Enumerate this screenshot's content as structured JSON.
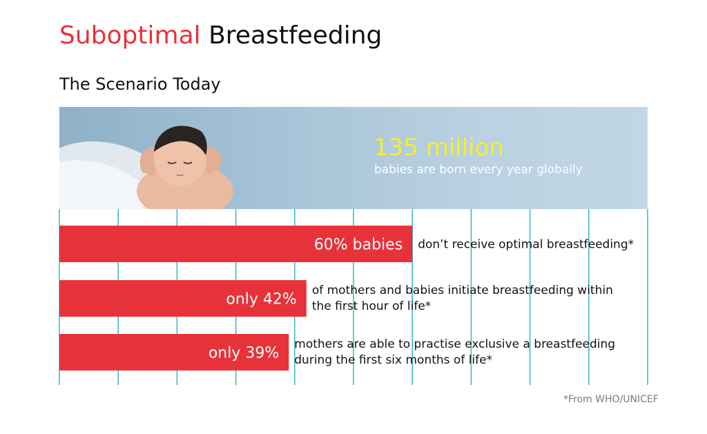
{
  "header": {
    "title_accent": "Suboptimal",
    "title_rest": "Breastfeeding",
    "subtitle": "The Scenario Today"
  },
  "hero": {
    "headline": "135 million",
    "subline": "babies are born every year globally"
  },
  "source_note": "*From WHO/UNICEF",
  "colors": {
    "accent": "#e8323a",
    "bar": "#e8323a",
    "grid": "#35b7c0",
    "headline": "#f6ef2a"
  },
  "chart_data": {
    "type": "bar",
    "orientation": "horizontal",
    "unit": "%",
    "xlim": [
      0,
      100
    ],
    "grid": true,
    "bars": [
      {
        "value": 60,
        "label": "60% babies",
        "text": [
          "don’t receive optimal breastfeeding*"
        ]
      },
      {
        "value": 42,
        "label": "only 42%",
        "text": [
          "of mothers and babies initiate breastfeeding within",
          "the first hour of life*"
        ]
      },
      {
        "value": 39,
        "label": "only 39%",
        "text": [
          "mothers are able to practise exclusive a breastfeeding",
          "during the first six months of life*"
        ]
      }
    ]
  }
}
